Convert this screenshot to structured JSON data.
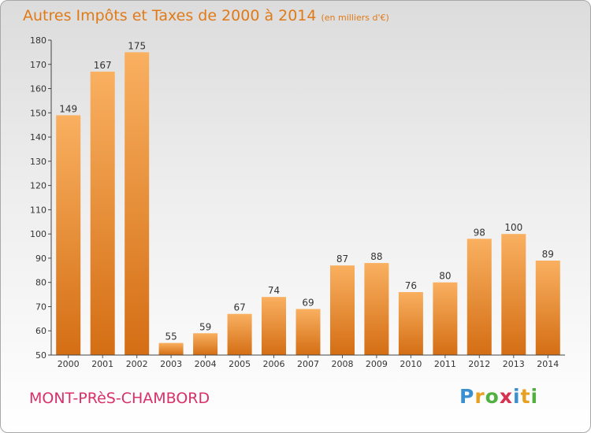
{
  "chart_data": {
    "type": "bar",
    "title": "Autres Impôts et Taxes de 2000 à 2014",
    "subtitle": "(en milliers d'€)",
    "categories": [
      "2000",
      "2001",
      "2002",
      "2003",
      "2004",
      "2005",
      "2006",
      "2007",
      "2008",
      "2009",
      "2010",
      "2011",
      "2012",
      "2013",
      "2014"
    ],
    "values": [
      149,
      167,
      175,
      55,
      59,
      67,
      74,
      69,
      87,
      88,
      76,
      80,
      98,
      100,
      89
    ],
    "ylim": [
      50,
      180
    ],
    "yticks": [
      50,
      60,
      70,
      80,
      90,
      100,
      110,
      120,
      130,
      140,
      150,
      160,
      170,
      180
    ],
    "xlabel": "",
    "ylabel": "",
    "grid": false,
    "bar_color": "#f0962e",
    "bar_color_light": "#f9b060",
    "bar_color_dark": "#d46e14"
  },
  "footer": {
    "town": "MONT-PRèS-CHAMBORD",
    "logo_letters": [
      "P",
      "r",
      "o",
      "x",
      "i",
      "t",
      "i"
    ],
    "logo_colors": [
      "#3a8fd0",
      "#e8a020",
      "#50b040",
      "#d83050",
      "#3a8fd0",
      "#e8a020",
      "#50b040"
    ]
  },
  "colors": {
    "title": "#e07a18",
    "town": "#d8306a"
  }
}
